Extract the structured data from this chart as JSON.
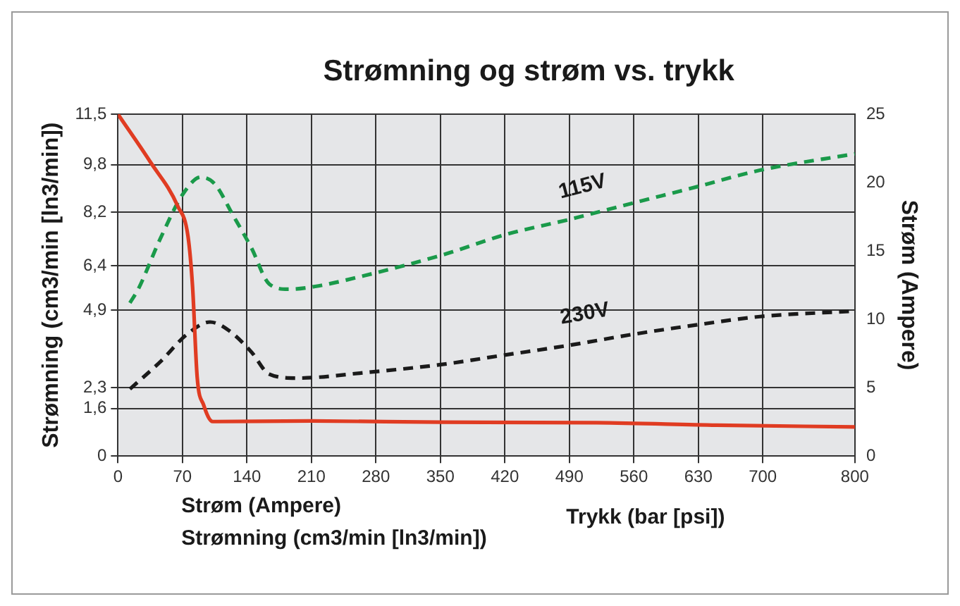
{
  "chart_data": {
    "type": "line",
    "title": "Strømning og strøm vs. trykk",
    "xlabel": "Trykk (bar [psi])",
    "ylabel": "Strømning (cm3/min [ln3/min])",
    "y2label": "Strøm (Ampere)",
    "annotations": [
      "Strøm (Ampere)",
      "Strømning (cm3/min [ln3/min])"
    ],
    "xlim": [
      0,
      800
    ],
    "xticks": [
      0,
      70,
      140,
      210,
      280,
      350,
      420,
      490,
      560,
      630,
      700,
      800
    ],
    "ylim": [
      0,
      11.5
    ],
    "yticks": [
      0,
      {
        "value": 1.6,
        "label": "1,6"
      },
      {
        "value": 2.3,
        "label": "2,3"
      },
      {
        "value": 4.9,
        "label": "4,9"
      },
      {
        "value": 6.4,
        "label": "6,4"
      },
      {
        "value": 8.2,
        "label": "8,2"
      },
      {
        "value": 9.8,
        "label": "9,8"
      },
      {
        "value": 11.5,
        "label": "11,5"
      }
    ],
    "y2lim": [
      0,
      25
    ],
    "y2ticks": [
      0,
      5,
      10,
      15,
      20,
      25
    ],
    "grid": true,
    "legend": false,
    "marker": "none",
    "series": [
      {
        "color": "#e03c22",
        "line_style": "solid",
        "x": [
          0,
          35,
          65,
          76,
          81,
          86,
          93,
          103,
          210,
          350,
          520,
          650,
          800
        ],
        "values": [
          11.5,
          9.9,
          8.4,
          7.4,
          5.7,
          2.66,
          1.72,
          1.16,
          1.18,
          1.14,
          1.12,
          1.04,
          0.98
        ]
      },
      {
        "name": "115V",
        "color": "#1a9a4a",
        "line_style": "dashed",
        "axis": "y2",
        "x": [
          13,
          22,
          46,
          71,
          90,
          105,
          125,
          145,
          164,
          185,
          214,
          268,
          352,
          421,
          490,
          559,
          629,
          697,
          800
        ],
        "values": [
          11.2,
          12.2,
          15.9,
          19.2,
          20.4,
          19.9,
          17.6,
          15.2,
          12.6,
          12.2,
          12.4,
          13.2,
          14.7,
          16.2,
          17.3,
          18.5,
          19.7,
          20.9,
          22.1
        ]
      },
      {
        "name": "230V",
        "color": "#1a1a1a",
        "line_style": "dashed",
        "axis": "y2",
        "x": [
          13,
          46,
          75,
          100,
          120,
          145,
          164,
          194,
          268,
          352,
          421,
          490,
          559,
          629,
          697,
          800
        ],
        "values": [
          4.9,
          6.9,
          8.9,
          9.8,
          9.2,
          7.6,
          6.0,
          5.7,
          6.1,
          6.7,
          7.4,
          8.1,
          8.9,
          9.6,
          10.2,
          10.6
        ]
      }
    ]
  }
}
